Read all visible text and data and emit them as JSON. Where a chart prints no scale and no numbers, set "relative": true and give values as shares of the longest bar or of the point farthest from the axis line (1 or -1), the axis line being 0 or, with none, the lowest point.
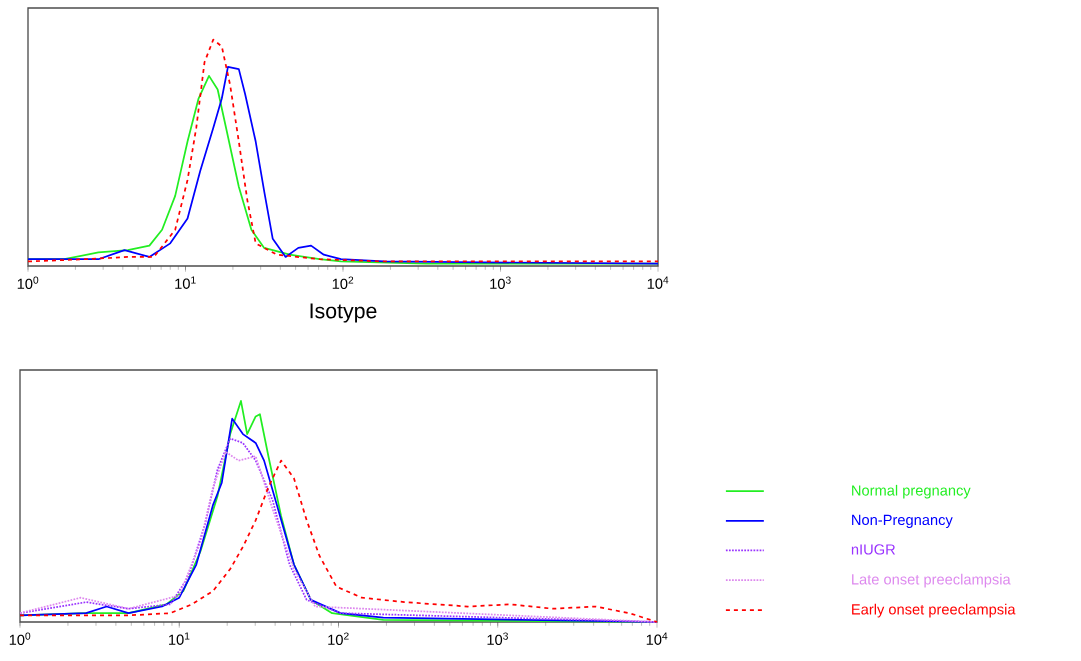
{
  "chart_data": [
    {
      "type": "line",
      "xlabel": "Isotype",
      "log": "x",
      "relative": true,
      "xlim": [
        1,
        10000
      ],
      "xticks": [
        {
          "value": 1,
          "label": "10$^{0}$"
        },
        {
          "value": 10,
          "label": "10$^{1}$"
        },
        {
          "value": 100,
          "label": "10$^{2}$"
        },
        {
          "value": 1000,
          "label": "10$^{3}$"
        },
        {
          "value": 10000,
          "label": "10$^{4}$"
        }
      ],
      "series": [
        {
          "color": "#22ee22",
          "line_style": "solid",
          "x": [
            1,
            1.7,
            2.8,
            4.3,
            5.9,
            7.1,
            8.6,
            10.3,
            12.1,
            14.1,
            16,
            18.1,
            21.8,
            26.2,
            31.6,
            45.9,
            71,
            97,
            337,
            10000
          ],
          "values": [
            0.03,
            0.03,
            0.06,
            0.07,
            0.09,
            0.16,
            0.31,
            0.55,
            0.74,
            0.84,
            0.78,
            0.61,
            0.35,
            0.16,
            0.08,
            0.05,
            0.03,
            0.02,
            0.01,
            0.01
          ]
        },
        {
          "color": "#0000ff",
          "line_style": "solid",
          "x": [
            1,
            1.7,
            2.8,
            4.1,
            5.9,
            8.0,
            10.3,
            12.4,
            15,
            17,
            18.6,
            21.8,
            23.9,
            27.9,
            31.6,
            35.8,
            43.2,
            52,
            62.7,
            75.5,
            97,
            181,
            10000
          ],
          "values": [
            0.03,
            0.03,
            0.03,
            0.07,
            0.04,
            0.1,
            0.21,
            0.42,
            0.61,
            0.74,
            0.88,
            0.87,
            0.76,
            0.55,
            0.33,
            0.12,
            0.04,
            0.08,
            0.09,
            0.05,
            0.03,
            0.02,
            0.01
          ]
        },
        {
          "color": "#ff0000",
          "line_style": "dashed",
          "x": [
            1,
            2.3,
            4.3,
            6.3,
            8.6,
            10.3,
            11.7,
            13.2,
            15,
            17,
            19.2,
            21.8,
            24.7,
            27.9,
            38.1,
            71,
            181,
            10000
          ],
          "values": [
            0.02,
            0.03,
            0.04,
            0.04,
            0.16,
            0.38,
            0.61,
            0.9,
            1.0,
            0.97,
            0.8,
            0.55,
            0.29,
            0.1,
            0.05,
            0.03,
            0.02,
            0.02
          ]
        }
      ]
    },
    {
      "type": "line",
      "log": "x",
      "relative": true,
      "xlim": [
        1,
        10000
      ],
      "legend": "right",
      "xticks": [
        {
          "value": 1,
          "label": "10$^{0}$"
        },
        {
          "value": 10,
          "label": "10$^{1}$"
        },
        {
          "value": 100,
          "label": "10$^{2}$"
        },
        {
          "value": 1000,
          "label": "10$^{3}$"
        },
        {
          "value": 10000,
          "label": "10$^{4}$"
        }
      ],
      "series": [
        {
          "name": "Normal pregnancy",
          "color": "#22ee22",
          "line_style": "solid",
          "x": [
            1,
            2.6,
            4.8,
            8.3,
            10.6,
            13.6,
            17.4,
            20.9,
            24.4,
            26.7,
            30.2,
            32.1,
            36.3,
            43.6,
            52.5,
            67.1,
            91.2,
            191,
            10000
          ],
          "values": [
            0.03,
            0.04,
            0.04,
            0.08,
            0.14,
            0.32,
            0.57,
            0.85,
            1.0,
            0.85,
            0.93,
            0.94,
            0.75,
            0.48,
            0.26,
            0.1,
            0.04,
            0.01,
            0.0
          ]
        },
        {
          "name": "Non-Pregnancy",
          "color": "#0000ff",
          "line_style": "solid",
          "x": [
            1,
            2.6,
            3.5,
            4.8,
            7.8,
            10,
            12.8,
            16.3,
            18.5,
            21.5,
            25.1,
            30.2,
            34.1,
            41,
            52.5,
            67.1,
            103,
            191,
            10000
          ],
          "values": [
            0.03,
            0.04,
            0.07,
            0.04,
            0.07,
            0.11,
            0.26,
            0.53,
            0.63,
            0.92,
            0.85,
            0.81,
            0.73,
            0.53,
            0.26,
            0.1,
            0.04,
            0.02,
            0.0
          ]
        },
        {
          "name": "nIUGR",
          "color": "#9933ff",
          "line_style": "dotted",
          "x": [
            1,
            2.6,
            4.8,
            8.8,
            11.3,
            14.5,
            17.4,
            20.9,
            25.1,
            30.2,
            38.6,
            49.3,
            63.1,
            103,
            10000
          ],
          "values": [
            0.04,
            0.09,
            0.06,
            0.08,
            0.2,
            0.44,
            0.69,
            0.83,
            0.81,
            0.73,
            0.55,
            0.26,
            0.1,
            0.04,
            0.0
          ]
        },
        {
          "name": "Late onset preeclampsia",
          "color": "#dd88ee",
          "line_style": "dotted",
          "x": [
            1,
            2.4,
            4.8,
            10,
            13.6,
            16.3,
            19.6,
            23.6,
            30.2,
            38.6,
            52.5,
            71.3,
            10000
          ],
          "values": [
            0.04,
            0.11,
            0.06,
            0.12,
            0.36,
            0.61,
            0.77,
            0.73,
            0.75,
            0.51,
            0.24,
            0.07,
            0.0
          ]
        },
        {
          "name": "Early onset preeclampsia",
          "color": "#ff0000",
          "line_style": "dashed",
          "x": [
            1,
            4.8,
            8.8,
            12,
            16.3,
            20.9,
            25.1,
            30.2,
            36.3,
            43.6,
            52.5,
            63.1,
            75.9,
            97,
            140,
            259,
            650,
            1202,
            2222,
            4102,
            6714,
            10000
          ],
          "values": [
            0.03,
            0.03,
            0.04,
            0.08,
            0.14,
            0.24,
            0.34,
            0.46,
            0.61,
            0.73,
            0.65,
            0.46,
            0.3,
            0.16,
            0.11,
            0.09,
            0.07,
            0.08,
            0.06,
            0.07,
            0.04,
            0.0
          ]
        }
      ]
    }
  ]
}
